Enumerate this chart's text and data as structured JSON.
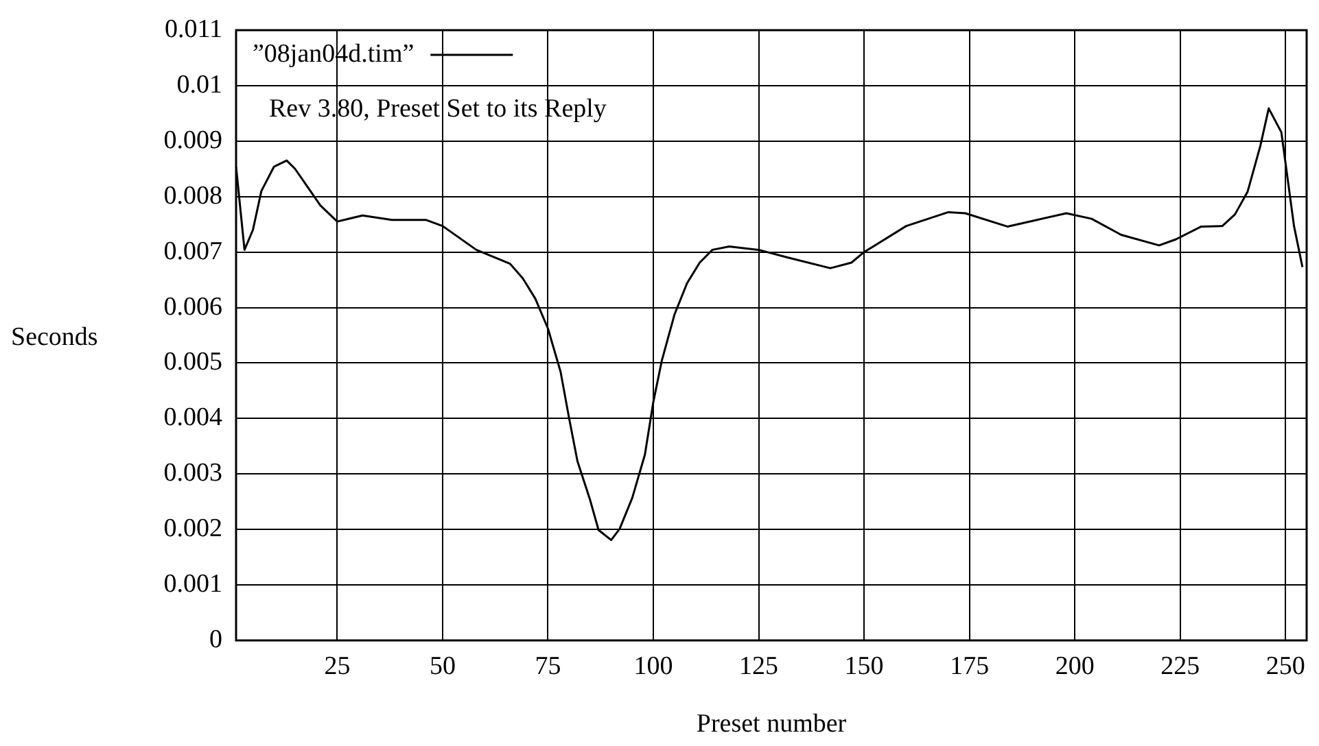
{
  "chart_data": {
    "type": "line",
    "xlabel": "Preset number",
    "ylabel": "Seconds",
    "legend": "top left",
    "grid": true,
    "marker": "none",
    "line_style": "solid",
    "annotations": [
      "Rev 3.80, Preset Set to its Reply"
    ],
    "xlim": [
      1,
      255
    ],
    "xticks": [
      25,
      50,
      75,
      100,
      125,
      150,
      175,
      200,
      225,
      250
    ],
    "ylim": [
      0,
      0.011
    ],
    "yticks": [
      0,
      0.001,
      0.002,
      0.003,
      0.004,
      0.005,
      0.006,
      0.007,
      0.008,
      0.009,
      0.01,
      0.011
    ],
    "series": [
      {
        "name": "”08jan04d.tim”",
        "color": "#000000",
        "x": [
          1,
          3,
          5,
          7,
          10,
          13,
          15,
          21,
          25,
          31,
          38,
          46,
          50,
          58,
          66,
          69,
          72,
          75,
          78,
          80,
          82,
          85,
          87,
          90,
          92,
          95,
          98,
          100,
          102,
          105,
          108,
          111,
          114,
          118,
          125,
          132,
          142,
          147,
          150,
          160,
          170,
          174,
          184,
          191,
          198,
          204,
          211,
          220,
          224,
          230,
          235,
          238,
          241,
          244,
          246,
          249,
          252,
          254
        ],
        "values": [
          0.00854,
          0.00704,
          0.0074,
          0.0081,
          0.00854,
          0.00865,
          0.0085,
          0.00784,
          0.00755,
          0.00766,
          0.00758,
          0.00758,
          0.00747,
          0.00704,
          0.00679,
          0.00653,
          0.00616,
          0.00562,
          0.00484,
          0.00401,
          0.00323,
          0.00253,
          0.00199,
          0.00181,
          0.00201,
          0.00257,
          0.00335,
          0.0043,
          0.00504,
          0.00587,
          0.00644,
          0.00681,
          0.00704,
          0.0071,
          0.00704,
          0.0069,
          0.00671,
          0.00681,
          0.007,
          0.00747,
          0.00772,
          0.0077,
          0.00746,
          0.00758,
          0.0077,
          0.0076,
          0.00731,
          0.00712,
          0.00723,
          0.00746,
          0.00747,
          0.00768,
          0.00809,
          0.00891,
          0.00959,
          0.00916,
          0.00747,
          0.00673
        ]
      }
    ]
  }
}
